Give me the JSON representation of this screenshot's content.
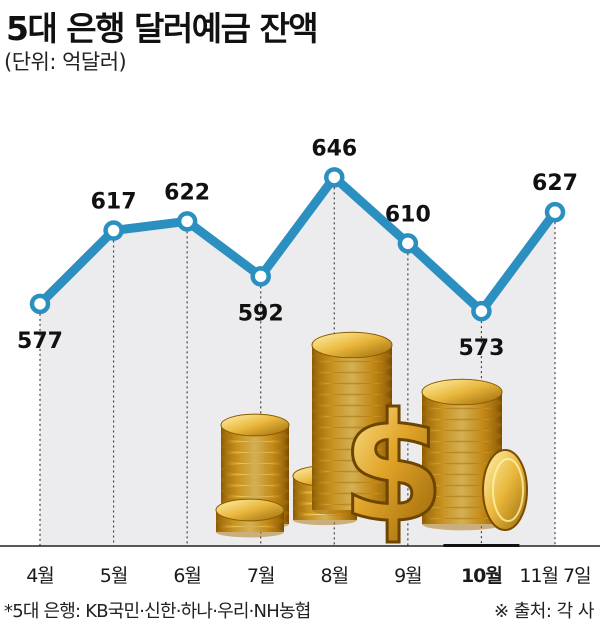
{
  "header": {
    "title": "5대 은행 달러예금 잔액",
    "unit": "(단위: 억달러)"
  },
  "chart_data": {
    "type": "line",
    "categories": [
      "4월",
      "5월",
      "6월",
      "7월",
      "8월",
      "9월",
      "10월",
      "11월 7일"
    ],
    "series": [
      {
        "values": [
          577,
          617,
          622,
          592,
          646,
          610,
          573,
          627
        ]
      }
    ],
    "data_labels": [
      "577",
      "617",
      "622",
      "592",
      "646",
      "610",
      "573",
      "627"
    ],
    "highlight_category": "10월",
    "ylim": [
      540,
      670
    ],
    "xlabel": "",
    "ylabel": "",
    "grid": false,
    "line_color": "#2b8fc0",
    "marker_fill": "#ffffff"
  },
  "footer": {
    "note": "*5대 은행: KB국민·신한·하나·우리·NH농협",
    "source": "※ 출처: 각 사"
  }
}
